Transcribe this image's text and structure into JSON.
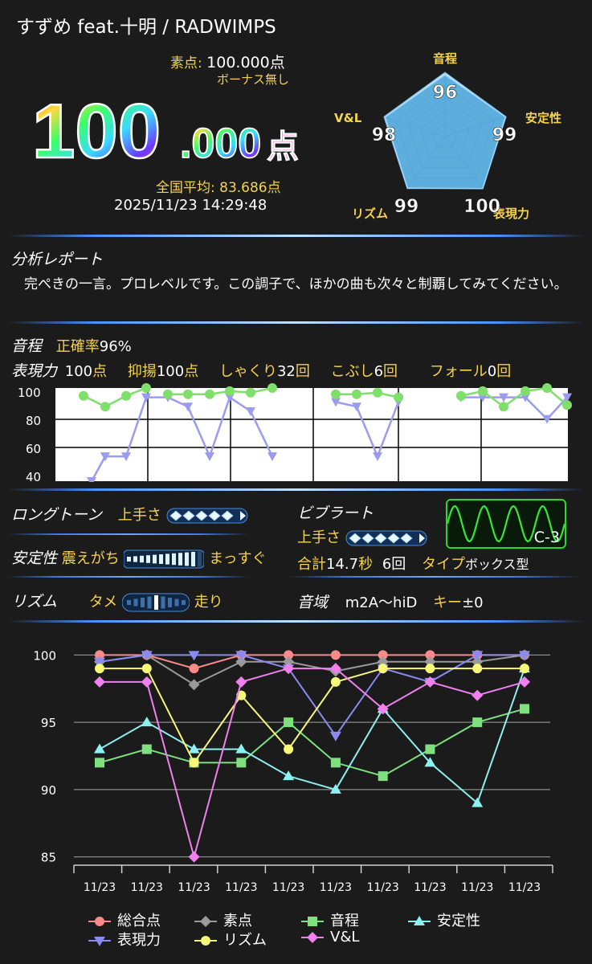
{
  "header": {
    "title": "すずめ feat.十明 / RADWIMPS"
  },
  "score": {
    "raw_label": "素点:",
    "raw_value": "100.000点",
    "bonus": "ボーナス無し",
    "big_int": "100",
    "big_dec": ".000",
    "big_unit": "点",
    "avg_label": "全国平均:",
    "avg_value": "83.686点",
    "datetime": "2025/11/23 14:29:48"
  },
  "radar": {
    "labels": {
      "pitch": "音程",
      "stability": "安定性",
      "expression": "表現力",
      "rhythm": "リズム",
      "vl": "V&L"
    },
    "values": {
      "pitch": "96",
      "stability": "99",
      "expression": "100",
      "rhythm": "99",
      "vl": "98"
    },
    "levels": [
      96,
      99,
      100,
      99,
      98
    ]
  },
  "report": {
    "heading": "分析レポート",
    "text": "完ぺきの一言。プロレベルです。この調子で、ほかの曲も次々と制覇してみてください。"
  },
  "pitch": {
    "heading": "音程",
    "accuracy_label": "正確率",
    "accuracy_value": "96%"
  },
  "expression": {
    "heading": "表現力",
    "value": "100",
    "unit": "点",
    "yokuyo_label": "抑揚",
    "yokuyo_value": "100",
    "yokuyo_unit": "点",
    "shakuri_label": "しゃくり",
    "shakuri_value": "32",
    "shakuri_unit": "回",
    "kobushi_label": "こぶし",
    "kobushi_value": "6",
    "kobushi_unit": "回",
    "fall_label": "フォール",
    "fall_value": "0",
    "fall_unit": "回"
  },
  "pitch_chart": {
    "ticks": [
      "100",
      "80",
      "60",
      "40"
    ],
    "colors": {
      "green": "#7ee06a",
      "purple": "#9b9bf0"
    }
  },
  "longtone": {
    "heading": "ロングトーン",
    "skill_label": "上手さ",
    "level": 0.9
  },
  "vibrato": {
    "heading": "ビブラート",
    "skill_label": "上手さ",
    "level": 0.9,
    "total_label": "合計",
    "total_value": "14.7",
    "total_unit": "秒",
    "count_value": "6回",
    "type_label": "タイプ",
    "type_value": "ボックス型",
    "note": "C-3"
  },
  "stability": {
    "heading": "安定性",
    "left_label": "震えがち",
    "right_label": "まっすぐ",
    "level": 0.95
  },
  "rhythm": {
    "heading": "リズム",
    "left_label": "タメ",
    "right_label": "走り",
    "level": 0.5
  },
  "range": {
    "heading": "音域",
    "value": "m2A〜hiD",
    "key_label": "キー",
    "key_value": "±0"
  },
  "chart_data": {
    "type": "line",
    "categories": [
      "11/23",
      "11/23",
      "11/23",
      "11/23",
      "11/23",
      "11/23",
      "11/23",
      "11/23",
      "11/23",
      "11/23"
    ],
    "yticks": [
      "100",
      "95",
      "90",
      "85"
    ],
    "ylim": [
      84.5,
      100.5
    ],
    "series": [
      {
        "name": "総合点",
        "color": "#f88a8a",
        "marker": "circle",
        "values": [
          100,
          100,
          99,
          100,
          100,
          100,
          100,
          100,
          100,
          100
        ]
      },
      {
        "name": "素点",
        "color": "#9a9a9a",
        "marker": "diamond",
        "values": [
          99.5,
          100,
          97.8,
          99.5,
          99.5,
          98.8,
          99.5,
          99.5,
          99.5,
          100
        ]
      },
      {
        "name": "音程",
        "color": "#7ee07e",
        "marker": "square",
        "values": [
          92,
          93,
          92,
          92,
          95,
          92,
          91,
          93,
          95,
          96
        ]
      },
      {
        "name": "安定性",
        "color": "#8ef0f0",
        "marker": "triangle",
        "values": [
          93,
          95,
          93,
          93,
          91,
          90,
          96,
          92,
          89,
          99
        ]
      },
      {
        "name": "表現力",
        "color": "#8a8af0",
        "marker": "tri-down",
        "values": [
          99.5,
          100,
          100,
          100,
          99,
          94,
          99,
          98,
          100,
          100
        ]
      },
      {
        "name": "リズム",
        "color": "#f8f878",
        "marker": "circle",
        "values": [
          99,
          99,
          92,
          97,
          93,
          98,
          99,
          99,
          99,
          99
        ]
      },
      {
        "name": "V&L",
        "color": "#f080f0",
        "marker": "diamond",
        "values": [
          98,
          98,
          85,
          98,
          99,
          99,
          96,
          98,
          97,
          98
        ]
      }
    ]
  }
}
